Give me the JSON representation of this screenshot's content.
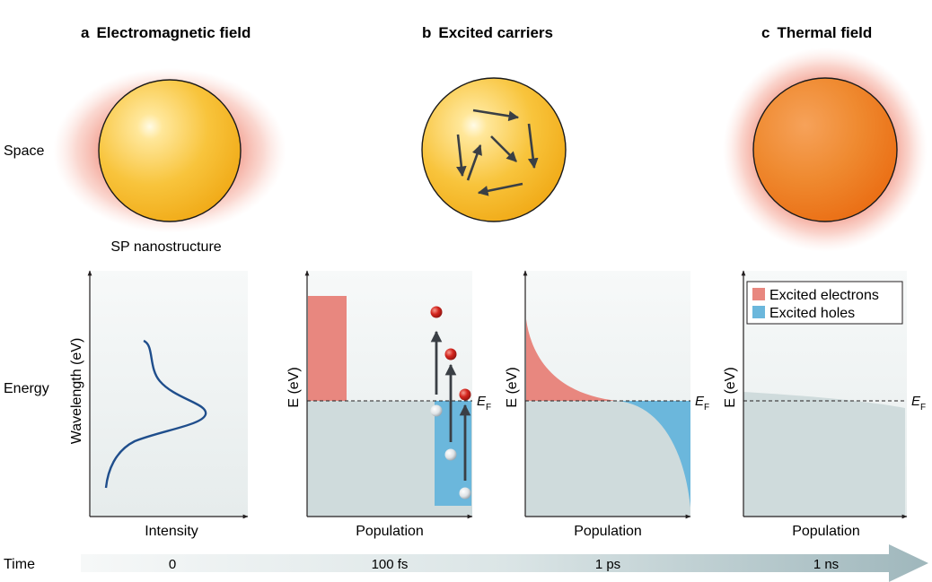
{
  "panels": {
    "a": {
      "letter": "a",
      "title": "Electromagnetic field",
      "caption": "SP nanostructure"
    },
    "b": {
      "letter": "b",
      "title": "Excited carriers"
    },
    "c": {
      "letter": "c",
      "title": "Thermal field"
    }
  },
  "rows": {
    "space": "Space",
    "energy": "Energy",
    "time": "Time"
  },
  "plots": {
    "p1": {
      "xlabel": "Intensity",
      "ylabel": "Wavelength (eV)"
    },
    "p2": {
      "xlabel": "Population",
      "ylabel": "E (eV)",
      "ef": "E",
      "ef_sub": "F"
    },
    "p3": {
      "xlabel": "Population",
      "ylabel": "E (eV)",
      "ef": "E",
      "ef_sub": "F"
    },
    "p4": {
      "xlabel": "Population",
      "ylabel": "E (eV)",
      "ef": "E",
      "ef_sub": "F"
    }
  },
  "legend": {
    "items": [
      {
        "label": "Excited electrons",
        "color": "#e8877f"
      },
      {
        "label": "Excited holes",
        "color": "#6bb7dc"
      }
    ]
  },
  "timeline": {
    "ticks": [
      "0",
      "100 fs",
      "1 ps",
      "1 ns"
    ]
  },
  "colors": {
    "gold": "#f4b324",
    "orange": "#ec7a1f",
    "glow": "#f08a78",
    "electrons": "#e8877f",
    "holes": "#6bb7dc",
    "fermi_sea": "#cfdbdc",
    "arrow": "#3a3f45",
    "curve": "#1f4e8c"
  }
}
